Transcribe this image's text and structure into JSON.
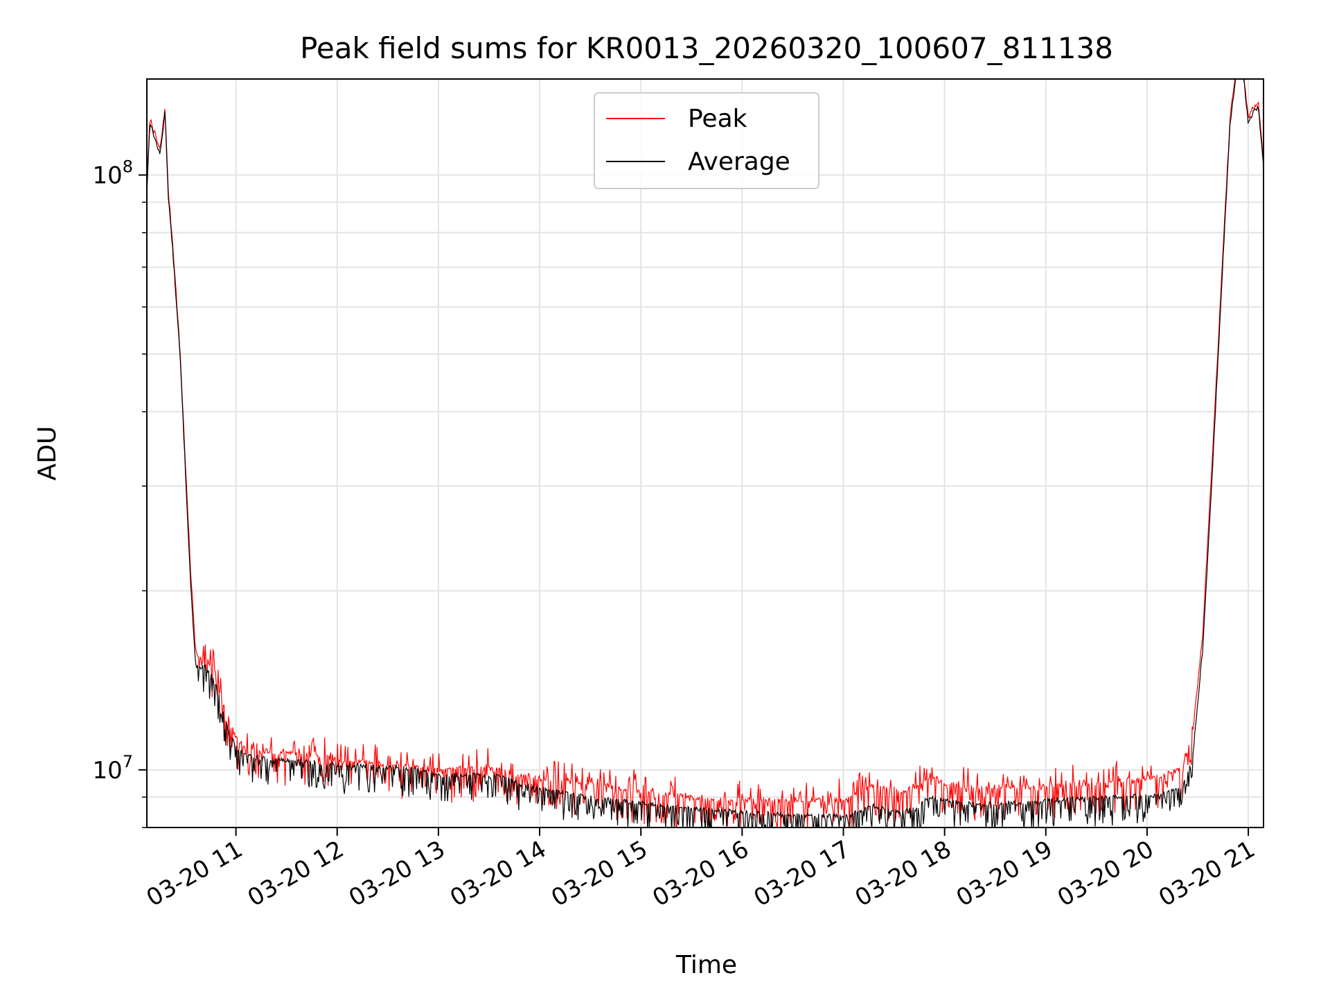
{
  "chart_data": {
    "type": "line",
    "title": "Peak field sums for KR0013_20260320_100607_811138",
    "xlabel": "Time",
    "ylabel": "ADU",
    "yscale": "log",
    "ylim": [
      8000000,
      145000000
    ],
    "xlim_hours": [
      10.12,
      21.15
    ],
    "x_tick_values": [
      11,
      12,
      13,
      14,
      15,
      16,
      17,
      18,
      19,
      20,
      21
    ],
    "x_tick_labels": [
      "03-20 11",
      "03-20 12",
      "03-20 13",
      "03-20 14",
      "03-20 15",
      "03-20 16",
      "03-20 17",
      "03-20 18",
      "03-20 19",
      "03-20 20",
      "03-20 21"
    ],
    "y_major_ticks": [
      {
        "value": 10000000,
        "base": "10",
        "exp": "7"
      },
      {
        "value": 100000000,
        "base": "10",
        "exp": "8"
      }
    ],
    "grid": true,
    "legend_position": "upper-center",
    "series": [
      {
        "name": "Peak",
        "color": "#ff0000",
        "x": [
          10.12,
          10.15,
          10.18,
          10.25,
          10.3,
          10.33,
          10.38,
          10.45,
          10.5,
          10.55,
          10.6,
          10.65,
          10.7,
          10.8,
          10.9,
          11.0,
          11.1,
          11.2,
          11.4,
          11.6,
          11.8,
          12.0,
          12.3,
          12.6,
          12.8,
          13.0,
          13.3,
          13.6,
          13.8,
          14.0,
          14.5,
          15.0,
          15.5,
          16.0,
          16.5,
          17.0,
          17.3,
          17.5,
          17.7,
          17.85,
          18.0,
          18.3,
          18.6,
          18.9,
          19.0,
          19.3,
          19.6,
          20.0,
          20.2,
          20.35,
          20.45,
          20.55,
          20.65,
          20.75,
          20.82,
          20.88,
          20.95,
          21.0,
          21.05,
          21.1,
          21.15
        ],
        "y": [
          95000000,
          125000000,
          120000000,
          110000000,
          130000000,
          95000000,
          75000000,
          50000000,
          33000000,
          22000000,
          16000000,
          15300000,
          15500000,
          14500000,
          12500000,
          11300000,
          10900000,
          10800000,
          10700000,
          10600000,
          10500000,
          10400000,
          10300000,
          10200000,
          10100000,
          10000000,
          10100000,
          10000000,
          9800000,
          9700000,
          9500000,
          9200000,
          9000000,
          8900000,
          8900000,
          8900000,
          9400000,
          9200000,
          9300000,
          9700000,
          9500000,
          9300000,
          9400000,
          9300000,
          9400000,
          9450000,
          9550000,
          9700000,
          9800000,
          10100000,
          11500000,
          17000000,
          35000000,
          75000000,
          125000000,
          150000000,
          150000000,
          125000000,
          130000000,
          132000000,
          105000000
        ]
      },
      {
        "name": "Average",
        "color": "#000000",
        "x": [
          10.12,
          10.15,
          10.18,
          10.25,
          10.3,
          10.33,
          10.38,
          10.45,
          10.5,
          10.55,
          10.6,
          10.65,
          10.7,
          10.8,
          10.9,
          11.0,
          11.1,
          11.2,
          11.4,
          11.6,
          11.8,
          12.0,
          12.3,
          12.6,
          12.8,
          13.0,
          13.3,
          13.6,
          13.8,
          14.0,
          14.5,
          15.0,
          15.5,
          16.0,
          16.5,
          17.0,
          17.3,
          17.5,
          17.7,
          17.85,
          18.0,
          18.3,
          18.6,
          18.9,
          19.0,
          19.3,
          19.6,
          20.0,
          20.2,
          20.35,
          20.45,
          20.55,
          20.65,
          20.75,
          20.82,
          20.88,
          20.95,
          21.0,
          21.05,
          21.1,
          21.15
        ],
        "y": [
          93000000,
          123000000,
          118000000,
          108000000,
          128000000,
          93000000,
          73000000,
          49000000,
          32000000,
          21000000,
          15000000,
          14800000,
          15000000,
          14000000,
          12000000,
          10900000,
          10600000,
          10500000,
          10400000,
          10350000,
          10300000,
          10200000,
          10150000,
          10100000,
          10000000,
          9800000,
          9800000,
          9750000,
          9500000,
          9300000,
          9000000,
          8800000,
          8600000,
          8500000,
          8400000,
          8350000,
          8700000,
          8500000,
          8600000,
          9000000,
          8900000,
          8750000,
          8800000,
          8800000,
          8900000,
          8950000,
          9000000,
          9050000,
          9150000,
          9400000,
          10500000,
          16000000,
          33000000,
          72000000,
          122000000,
          148000000,
          148000000,
          122000000,
          128000000,
          130000000,
          103000000
        ]
      }
    ]
  }
}
